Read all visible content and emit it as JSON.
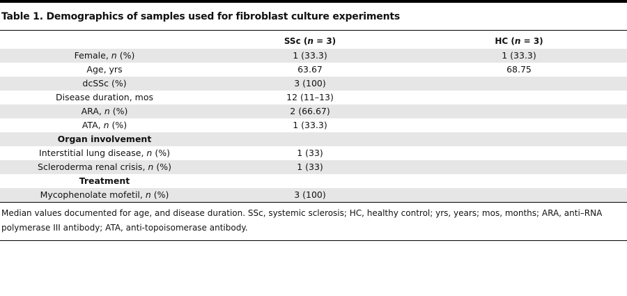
{
  "table": {
    "title": "Table 1. Demographics of samples used for fibroblast culture experiments",
    "headers": {
      "ssc": "SSc (n = 3)",
      "hc": "HC (n = 3)"
    },
    "rows": [
      {
        "label": "Female, n (%)",
        "ssc": "1 (33.3)",
        "hc": "1 (33.3)"
      },
      {
        "label": "Age, yrs",
        "ssc": "63.67",
        "hc": "68.75"
      },
      {
        "label": "dcSSc (%)",
        "ssc": "3 (100)",
        "hc": ""
      },
      {
        "label": "Disease duration, mos",
        "ssc": "12 (11–13)",
        "hc": ""
      },
      {
        "label": "ARA, n (%)",
        "ssc": "2 (66.67)",
        "hc": ""
      },
      {
        "label": "ATA, n (%)",
        "ssc": "1 (33.3)",
        "hc": ""
      },
      {
        "label": "Organ involvement",
        "ssc": "",
        "hc": ""
      },
      {
        "label": "Interstitial lung disease, n (%)",
        "ssc": "1 (33)",
        "hc": ""
      },
      {
        "label": "Scleroderma renal crisis, n (%)",
        "ssc": "1 (33)",
        "hc": ""
      },
      {
        "label": "Treatment",
        "ssc": "",
        "hc": ""
      },
      {
        "label": "Mycophenolate mofetil, n (%)",
        "ssc": "3 (100)",
        "hc": ""
      }
    ],
    "footnote": "Median values documented for age, and disease duration. SSc, systemic sclerosis; HC, healthy control; yrs, years; mos, months; ARA, anti–RNA polymerase III antibody; ATA, anti-topoisomerase antibody."
  }
}
